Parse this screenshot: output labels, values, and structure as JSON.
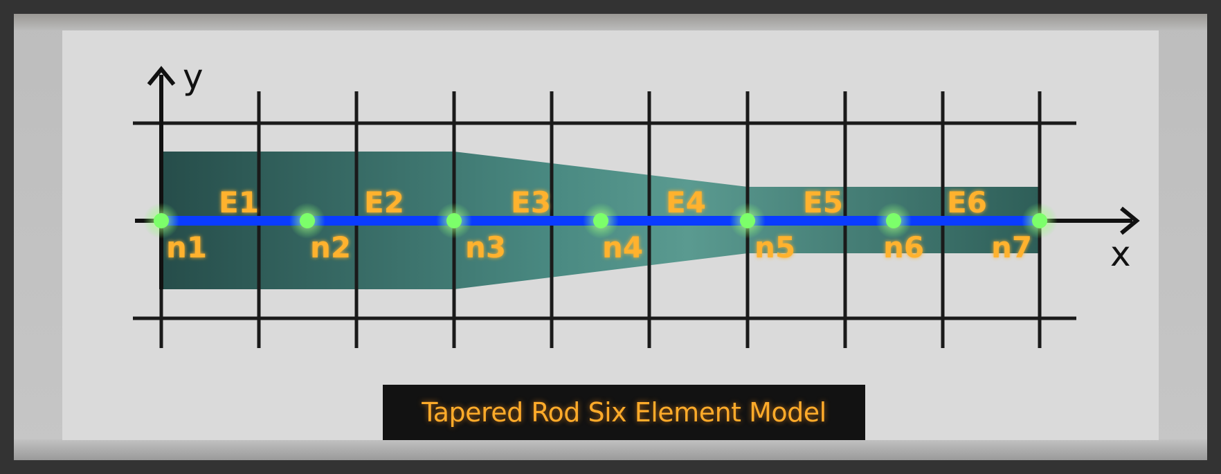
{
  "title": "Tapered Rod Six Element Model",
  "axes": {
    "x_label": "x",
    "y_label": "y"
  },
  "elements": [
    "E1",
    "E2",
    "E3",
    "E4",
    "E5",
    "E6"
  ],
  "nodes": [
    "n1",
    "n2",
    "n3",
    "n4",
    "n5",
    "n6",
    "n7"
  ],
  "colors": {
    "rod_fill": "#4f8a82",
    "beam": "#0a3cff",
    "node": "#7cff6a",
    "label": "#ffb22e",
    "grid": "#1a1a1a"
  }
}
